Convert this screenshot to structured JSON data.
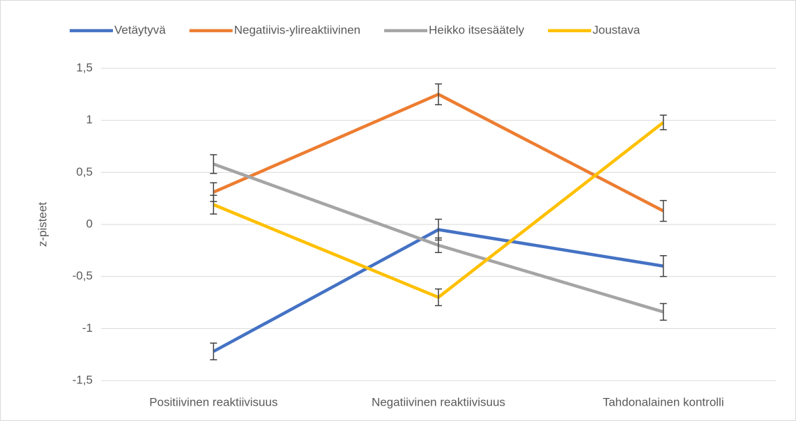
{
  "chart_data": {
    "type": "line",
    "ylabel": "z-pisteet",
    "categories": [
      "Positiivinen reaktiivisuus",
      "Negatiivinen reaktiivisuus",
      "Tahdonalainen kontrolli"
    ],
    "series": [
      {
        "name": "Vetäytyvä",
        "color": "#4472c4",
        "values": [
          -1.22,
          -0.05,
          -0.4
        ],
        "errors": [
          0.08,
          0.1,
          0.1
        ]
      },
      {
        "name": "Negatiivis-ylireaktiivinen",
        "color": "#ed7d31",
        "values": [
          0.31,
          1.25,
          0.13
        ],
        "errors": [
          0.09,
          0.1,
          0.1
        ]
      },
      {
        "name": "Heikko itsesäätely",
        "color": "#a5a5a5",
        "values": [
          0.58,
          -0.2,
          -0.84
        ],
        "errors": [
          0.09,
          0.07,
          0.08
        ]
      },
      {
        "name": "Joustava",
        "color": "#ffc000",
        "values": [
          0.19,
          -0.7,
          0.98
        ],
        "errors": [
          0.09,
          0.08,
          0.07
        ]
      }
    ],
    "ylim": [
      -1.5,
      1.5
    ],
    "yticks": [
      {
        "value": -1.5,
        "label": "-1,5"
      },
      -1,
      {
        "value": -0.5,
        "label": "-0,5"
      },
      0,
      {
        "value": 0.5,
        "label": "0,5"
      },
      1,
      {
        "value": 1.5,
        "label": "1,5"
      }
    ],
    "grid": true,
    "legend": "top"
  }
}
